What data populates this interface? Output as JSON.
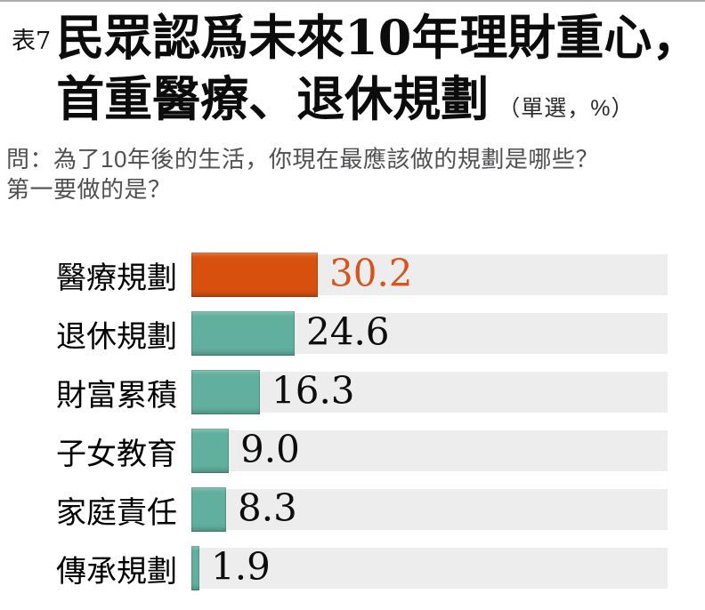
{
  "header": {
    "table_tag": "表7",
    "title_line1": "民眾認爲未來10年理財重心，",
    "title_line2": "首重醫療、退休規劃",
    "title_note": "（單選，%）"
  },
  "question": {
    "line1": "問：為了10年後的生活，你現在最應該做的規劃是哪些？",
    "line2": "第一要做的是？"
  },
  "chart_data": {
    "type": "bar",
    "orientation": "horizontal",
    "title": "民眾認爲未來10年理財重心，首重醫療、退休規劃",
    "subtitle": "（單選，%）",
    "question": "問：為了10年後的生活，你現在最應該做的規劃是哪些？第一要做的是？",
    "categories": [
      "醫療規劃",
      "退休規劃",
      "財富累積",
      "子女教育",
      "家庭責任",
      "傳承規劃"
    ],
    "values": [
      30.2,
      24.6,
      16.3,
      9.0,
      8.3,
      1.9
    ],
    "value_labels": [
      "30.2",
      "24.6",
      "16.3",
      "9.0",
      "8.3",
      "1.9"
    ],
    "unit": "%",
    "highlight_index": 0,
    "xlim": [
      0,
      114
    ],
    "grid": false,
    "legend": false,
    "colors": {
      "highlight_bar": "#d8500e",
      "bar": "#61af9e",
      "track": "#ededed",
      "highlight_value_text": "#d9541d",
      "value_text": "#0d0d0d"
    }
  }
}
